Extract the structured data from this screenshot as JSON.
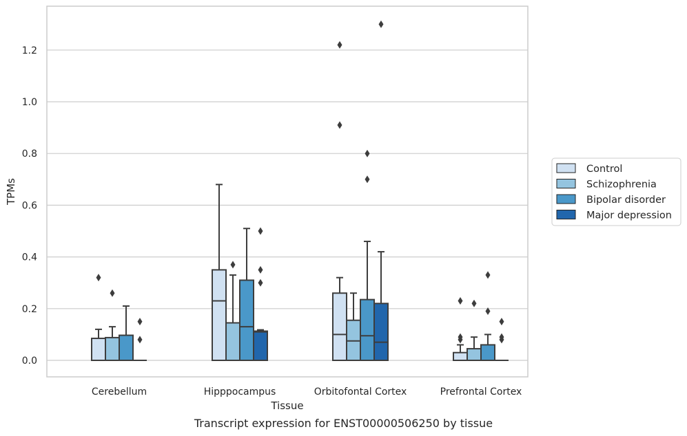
{
  "chart_data": {
    "type": "box",
    "title": "",
    "xlabel": "Tissue",
    "ylabel": "TPMs",
    "ylim": [
      -0.065,
      1.37
    ],
    "yticks": [
      "0.0",
      "0.2",
      "0.4",
      "0.6",
      "0.8",
      "1.0",
      "1.2"
    ],
    "grid": true,
    "legend_position": "right",
    "categories": [
      "Cerebellum",
      "Hipppocampus",
      "Orbitofontal Cortex",
      "Prefrontal Cortex"
    ],
    "series": [
      {
        "name": "Control",
        "color": "#d0e1f2",
        "boxes": [
          {
            "q1": 0.0,
            "median": 0.0,
            "q3": 0.085,
            "whisker_low": 0.0,
            "whisker_high": 0.12,
            "outliers": [
              0.32
            ]
          },
          {
            "q1": 0.0,
            "median": 0.23,
            "q3": 0.35,
            "whisker_low": 0.0,
            "whisker_high": 0.68,
            "outliers": []
          },
          {
            "q1": 0.0,
            "median": 0.1,
            "q3": 0.26,
            "whisker_low": 0.0,
            "whisker_high": 0.32,
            "outliers": [
              0.91,
              1.22
            ]
          },
          {
            "q1": 0.0,
            "median": 0.0,
            "q3": 0.03,
            "whisker_low": 0.0,
            "whisker_high": 0.06,
            "outliers": [
              0.08,
              0.09,
              0.23
            ]
          }
        ]
      },
      {
        "name": "Schizophrenia",
        "color": "#94c4df",
        "boxes": [
          {
            "q1": 0.0,
            "median": 0.0,
            "q3": 0.088,
            "whisker_low": 0.0,
            "whisker_high": 0.13,
            "outliers": [
              0.26
            ]
          },
          {
            "q1": 0.0,
            "median": 0.0,
            "q3": 0.145,
            "whisker_low": 0.0,
            "whisker_high": 0.33,
            "outliers": [
              0.37
            ]
          },
          {
            "q1": 0.0,
            "median": 0.075,
            "q3": 0.155,
            "whisker_low": 0.0,
            "whisker_high": 0.26,
            "outliers": []
          },
          {
            "q1": 0.0,
            "median": 0.0,
            "q3": 0.045,
            "whisker_low": 0.0,
            "whisker_high": 0.09,
            "outliers": [
              0.22
            ]
          }
        ]
      },
      {
        "name": "Bipolar disorder",
        "color": "#4a98c9",
        "boxes": [
          {
            "q1": 0.0,
            "median": 0.0,
            "q3": 0.097,
            "whisker_low": 0.0,
            "whisker_high": 0.21,
            "outliers": []
          },
          {
            "q1": 0.0,
            "median": 0.13,
            "q3": 0.31,
            "whisker_low": 0.0,
            "whisker_high": 0.51,
            "outliers": []
          },
          {
            "q1": 0.0,
            "median": 0.095,
            "q3": 0.235,
            "whisker_low": 0.0,
            "whisker_high": 0.46,
            "outliers": [
              0.7,
              0.8
            ]
          },
          {
            "q1": 0.0,
            "median": 0.0,
            "q3": 0.06,
            "whisker_low": 0.0,
            "whisker_high": 0.1,
            "outliers": [
              0.19,
              0.33
            ]
          }
        ]
      },
      {
        "name": "Major depression",
        "color": "#2166ac",
        "boxes": [
          {
            "q1": 0.0,
            "median": 0.0,
            "q3": 0.0,
            "whisker_low": 0.0,
            "whisker_high": 0.0,
            "outliers": [
              0.08,
              0.15
            ]
          },
          {
            "q1": 0.0,
            "median": 0.11,
            "q3": 0.113,
            "whisker_low": 0.0,
            "whisker_high": 0.118,
            "outliers": [
              0.3,
              0.35,
              0.5
            ]
          },
          {
            "q1": 0.0,
            "median": 0.07,
            "q3": 0.22,
            "whisker_low": 0.0,
            "whisker_high": 0.42,
            "outliers": [
              1.3
            ]
          },
          {
            "q1": 0.0,
            "median": 0.0,
            "q3": 0.0,
            "whisker_low": 0.0,
            "whisker_high": 0.0,
            "outliers": [
              0.08,
              0.09,
              0.15
            ]
          }
        ]
      }
    ]
  },
  "caption": "Transcript expression for ENST00000506250 by tissue"
}
